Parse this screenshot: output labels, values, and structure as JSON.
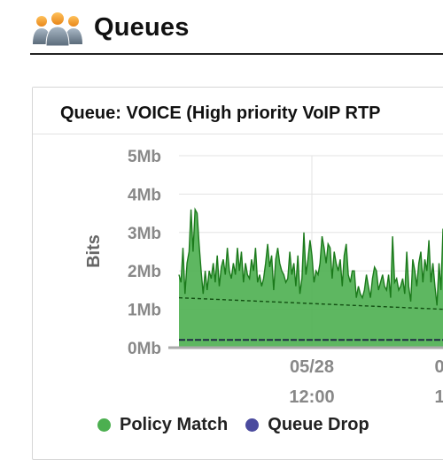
{
  "page": {
    "title": "Queues",
    "icon": "group-icon"
  },
  "panel": {
    "title": "Queue: VOICE (High priority VoIP RTP"
  },
  "colors": {
    "policy_match": "#4caf50",
    "policy_match_line": "#1b7a1b",
    "queue_drop": "#4a4a9e",
    "text_axis": "#888888",
    "grid": "#e3e3e3"
  },
  "chart_data": {
    "type": "area",
    "ylabel": "Bits",
    "xlabel": "",
    "ylim": [
      0,
      5
    ],
    "y_unit": "Mb",
    "yticks": [
      "0Mb",
      "1Mb",
      "2Mb",
      "3Mb",
      "4Mb",
      "5Mb"
    ],
    "xticks": [
      {
        "line1": "05/28",
        "line2": "12:00"
      },
      {
        "line1": "0",
        "line2": "1"
      }
    ],
    "legend": [
      "Policy Match",
      "Queue Drop"
    ],
    "series": [
      {
        "name": "Policy Match",
        "values": [
          1.9,
          1.7,
          2.6,
          1.4,
          2.2,
          2.5,
          3.6,
          2.5,
          3.6,
          3.5,
          2.7,
          2.0,
          1.4,
          2.0,
          1.5,
          2.0,
          1.8,
          2.2,
          1.7,
          2.4,
          1.6,
          2.1,
          2.3,
          1.9,
          2.6,
          2.0,
          1.8,
          2.2,
          1.9,
          2.6,
          2.0,
          2.5,
          1.7,
          2.2,
          1.9,
          1.8,
          2.3,
          2.0,
          2.6,
          1.7,
          1.9,
          1.6,
          1.8,
          2.2,
          2.7,
          2.1,
          2.4,
          1.5,
          2.3,
          2.6,
          2.2,
          2.0,
          1.9,
          1.7,
          1.8,
          2.5,
          1.9,
          2.2,
          1.6,
          2.4,
          1.4,
          1.8,
          3.0,
          1.9,
          2.3,
          2.8,
          2.4,
          1.7,
          2.0,
          1.9,
          2.2,
          2.9,
          2.6,
          2.2,
          2.7,
          2.6,
          1.8,
          2.5,
          2.2,
          2.0,
          2.3,
          1.6,
          2.4,
          2.7,
          1.9,
          1.7,
          2.0,
          2.0,
          1.3,
          1.6,
          1.4,
          1.3,
          1.5,
          1.9,
          1.6,
          1.3,
          1.8,
          2.1,
          2.0,
          1.5,
          1.7,
          1.9,
          1.6,
          1.5,
          1.9,
          1.3,
          2.9,
          1.7,
          1.8,
          1.5,
          1.6,
          1.8,
          1.4,
          2.5,
          1.6,
          1.2,
          2.3,
          2.0,
          1.6,
          2.2,
          2.5,
          1.7,
          2.3,
          2.0,
          2.8,
          1.7,
          2.2,
          1.6,
          1.1,
          2.2,
          1.5,
          3.1
        ]
      },
      {
        "name": "Policy Match (average)",
        "values": [
          1.3,
          1.2,
          1.1,
          1.0
        ]
      },
      {
        "name": "Queue Drop",
        "values": [
          0.2,
          0.2,
          0.2,
          0.2
        ]
      }
    ]
  }
}
